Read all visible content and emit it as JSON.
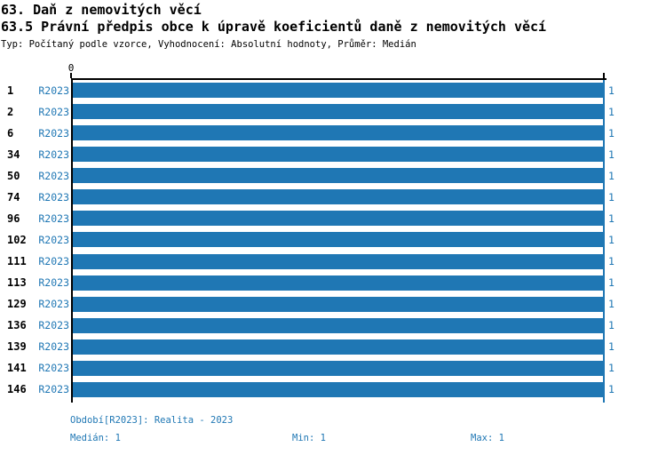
{
  "chart_data": {
    "type": "bar",
    "orientation": "horizontal",
    "title": "63. Daň z nemovitých věcí",
    "subtitle": "63.5 Právní předpis obce k úpravě koeficientů daně z nemovitých věcí",
    "meta": "Typ: Počítaný podle vzorce, Vyhodnocení: Absolutní hodnoty, Průměr: Medián",
    "categories": [
      "1",
      "2",
      "6",
      "34",
      "50",
      "74",
      "96",
      "102",
      "111",
      "113",
      "129",
      "136",
      "139",
      "141",
      "146"
    ],
    "series": [
      {
        "name": "R2023",
        "values": [
          1,
          1,
          1,
          1,
          1,
          1,
          1,
          1,
          1,
          1,
          1,
          1,
          1,
          1,
          1
        ]
      }
    ],
    "value_labels": [
      "1",
      "1",
      "1",
      "1",
      "1",
      "1",
      "1",
      "1",
      "1",
      "1",
      "1",
      "1",
      "1",
      "1",
      "1"
    ],
    "xlim": [
      0,
      1
    ],
    "x_ticks": [
      {
        "value": 0,
        "label": "0"
      },
      {
        "value": 1,
        "label": ""
      }
    ],
    "max_reference_line": 1,
    "grid": false,
    "legend_position": "none",
    "bar_color": "#1f77b4",
    "accent_color": "#1f77b4",
    "axis_color": "#000000",
    "category_label_color": "#000000"
  },
  "footer": {
    "period": "Období[R2023]: Realita - 2023",
    "median": "Medián: 1",
    "min": "Min: 1",
    "max": "Max: 1"
  }
}
